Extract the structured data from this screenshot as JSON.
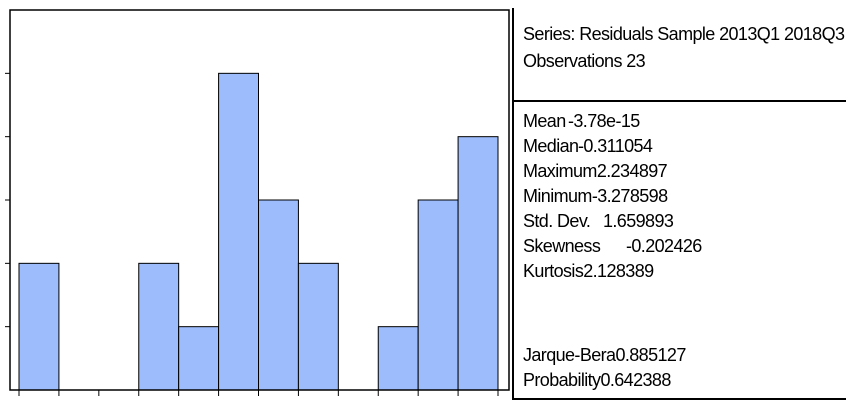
{
  "chart_data": {
    "type": "bar",
    "title": "",
    "xlabel": "",
    "ylabel": "",
    "bins": 12,
    "values": [
      2,
      0,
      0,
      2,
      1,
      5,
      3,
      2,
      0,
      1,
      3,
      4
    ],
    "ylim": [
      0,
      6
    ],
    "bar_color": "#9dbcfb",
    "edge_color": "#000000"
  },
  "stats": {
    "series_line": "Series: Residuals Sample 2013Q1 2018Q3",
    "observations_line": "Observations 23",
    "mean_label": "Mean",
    "mean_value": "-3.78e-15",
    "median_label": "Median",
    "median_value": "-0.311054",
    "maximum_label": "Maximum",
    "maximum_value": "2.234897",
    "minimum_label": "Minimum",
    "minimum_value": "-3.278598",
    "stddev_label": "Std. Dev.",
    "stddev_value": "1.659893",
    "skewness_label": "Skewness",
    "skewness_value": "-0.202426",
    "kurtosis_label": "Kurtosis",
    "kurtosis_value": "2.128389",
    "jb_label": "Jarque-Bera",
    "jb_value": "0.885127",
    "prob_label": "Probability",
    "prob_value": "0.642388"
  }
}
